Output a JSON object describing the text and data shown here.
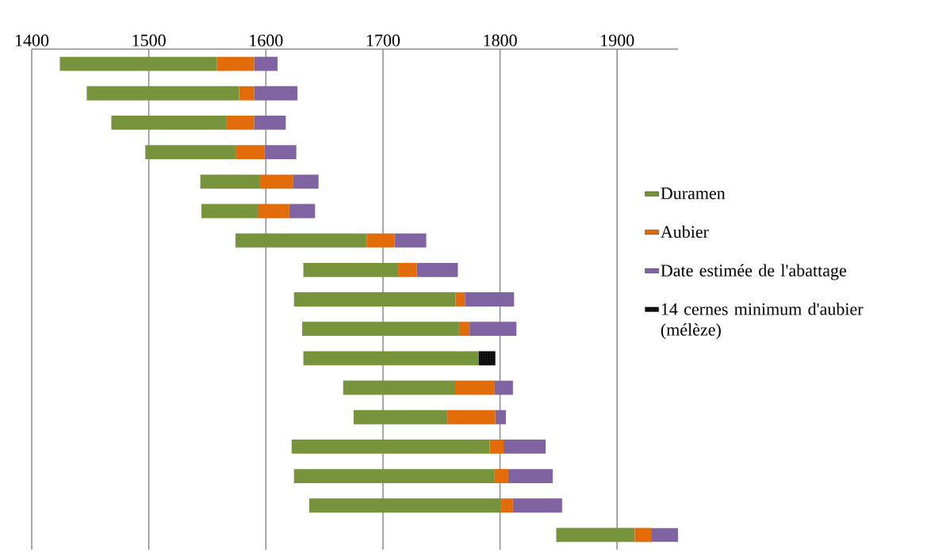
{
  "chart_data": {
    "type": "bar",
    "orientation": "horizontal",
    "categories": [
      null,
      null,
      null,
      null,
      null,
      null,
      null,
      null,
      null,
      null,
      null,
      null,
      null,
      null,
      null,
      null,
      null
    ],
    "series": [
      {
        "name": "Duramen",
        "color": "#77933c",
        "base": [
          1424,
          1447,
          1468,
          1497,
          1544,
          1545,
          1574,
          1632,
          1624,
          1631,
          1632,
          1666,
          1675,
          1622,
          1624,
          1637,
          1848
        ],
        "values": [
          134,
          130,
          98,
          77,
          51,
          48,
          112,
          81,
          138,
          134,
          150,
          95,
          80,
          169,
          171,
          164,
          67
        ]
      },
      {
        "name": "Aubier",
        "color": "#e36c0a",
        "base": [
          1558,
          1577,
          1566,
          1574,
          1595,
          1593,
          1686,
          1713,
          1762,
          1765,
          null,
          1761,
          1755,
          1791,
          1795,
          1801,
          1915
        ],
        "values": [
          32,
          13,
          24,
          25,
          28,
          27,
          24,
          16,
          8,
          9,
          null,
          34,
          41,
          12,
          12,
          10,
          14
        ]
      },
      {
        "name": "Date estimée de l'abattage",
        "color": "#8064a2",
        "base": [
          1590,
          1590,
          1590,
          1599,
          1623,
          1620,
          1710,
          1729,
          1770,
          1774,
          null,
          1795,
          1796,
          1803,
          1807,
          1811,
          1929
        ],
        "values": [
          20,
          37,
          27,
          27,
          22,
          22,
          27,
          35,
          42,
          40,
          null,
          16,
          9,
          36,
          38,
          42,
          23
        ]
      },
      {
        "name": "14 cernes minimum d'aubier (mélèze)",
        "color": "#000000",
        "base": [
          null,
          null,
          null,
          null,
          null,
          null,
          null,
          null,
          null,
          null,
          1782,
          null,
          null,
          null,
          null,
          null,
          null
        ],
        "values": [
          null,
          null,
          null,
          null,
          null,
          null,
          null,
          null,
          null,
          null,
          14,
          null,
          null,
          null,
          null,
          null,
          null
        ]
      }
    ],
    "xlim": [
      1400,
      1952
    ],
    "xticks": [
      1400,
      1500,
      1600,
      1700,
      1800,
      1900
    ],
    "grid": "x",
    "legend": "right"
  }
}
